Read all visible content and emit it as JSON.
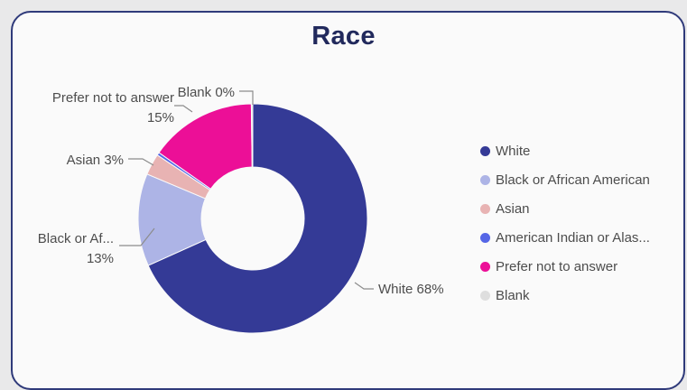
{
  "chart_data": {
    "type": "pie",
    "title": "Race",
    "donut": true,
    "legend_position": "right",
    "slices": [
      {
        "name": "White",
        "value": 68,
        "label": "White 68%",
        "color": "#343a96"
      },
      {
        "name": "Black or African American",
        "value": 13,
        "label_line1": "Black or Af...",
        "label_line2": "13%",
        "color": "#adb4e6"
      },
      {
        "name": "Asian",
        "value": 3,
        "label": "Asian 3%",
        "color": "#e8b3b3"
      },
      {
        "name": "American Indian or Alaska Native",
        "value": 0.4,
        "color": "#5566e6"
      },
      {
        "name": "Prefer not to answer",
        "value": 15,
        "label_line1": "Prefer not to answer",
        "label_line2": "15%",
        "color": "#ec0f97"
      },
      {
        "name": "Blank",
        "value": 0.2,
        "label": "Blank 0%",
        "color": "#dedede"
      }
    ],
    "legend": [
      {
        "label": "White",
        "color": "#343a96"
      },
      {
        "label": "Black or African American",
        "color": "#adb4e6"
      },
      {
        "label": "Asian",
        "color": "#e8b3b3"
      },
      {
        "label": "American Indian or Alas...",
        "color": "#5566e6"
      },
      {
        "label": "Prefer not to answer",
        "color": "#ec0f97"
      },
      {
        "label": "Blank",
        "color": "#dedede"
      }
    ]
  }
}
